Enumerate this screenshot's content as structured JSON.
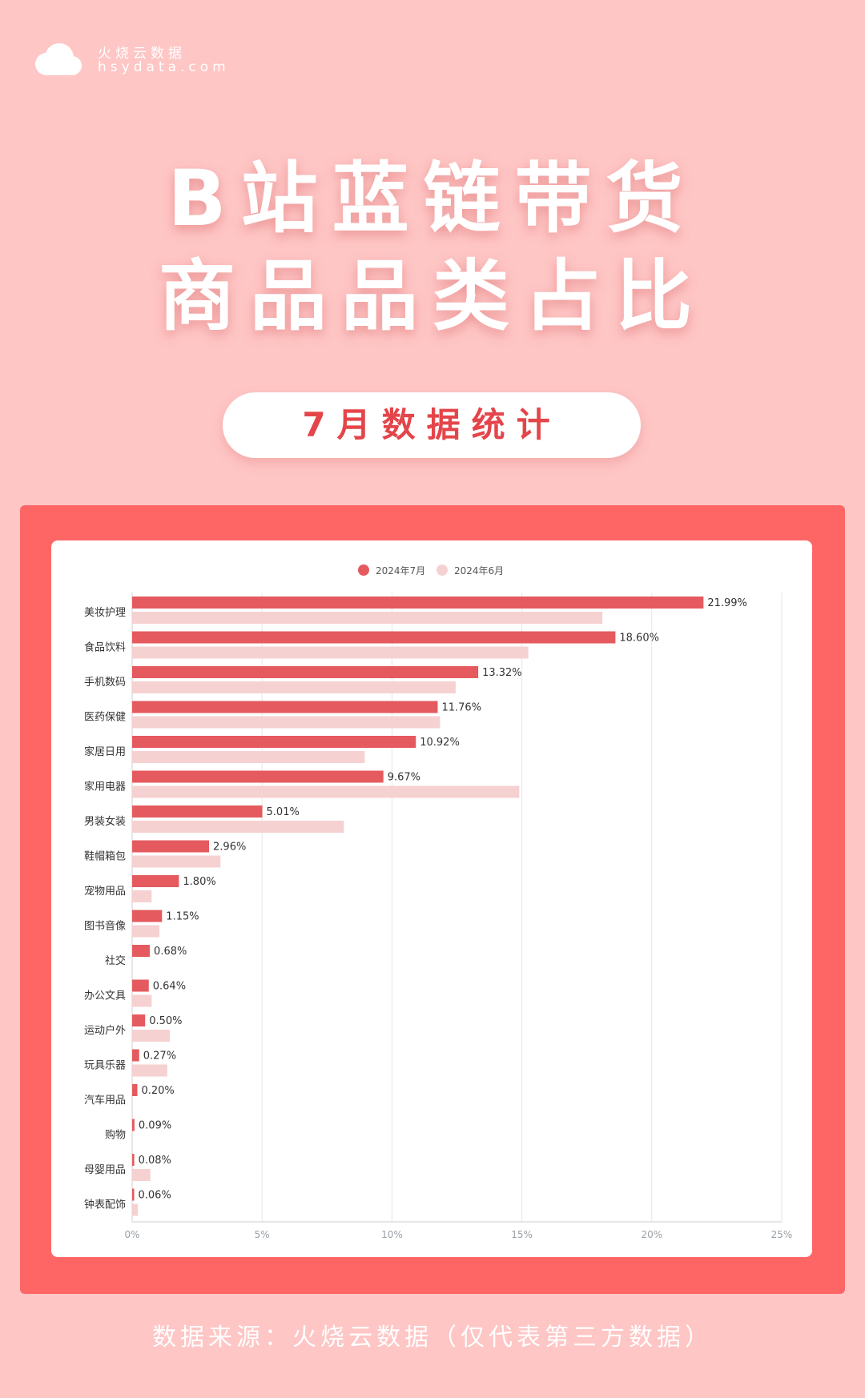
{
  "brand": {
    "name": "火烧云数据",
    "url": "hsydata.com",
    "logo_icon": "cloud-icon"
  },
  "title_line1": "B站蓝链带货",
  "title_line2": "商品品类占比",
  "subtitle_pill": "7月数据统计",
  "source": "数据来源：火烧云数据（仅代表第三方数据）",
  "colors": {
    "background": "#fec6c5",
    "frame": "#fe6666",
    "jul": "#e45a5e",
    "jun": "#f6d1d1",
    "accent": "#e4454a"
  },
  "chart_data": {
    "type": "bar",
    "orientation": "horizontal",
    "categories": [
      "美妆护理",
      "食品饮料",
      "手机数码",
      "医药保健",
      "家居日用",
      "家用电器",
      "男装女装",
      "鞋帽箱包",
      "宠物用品",
      "图书音像",
      "社交",
      "办公文具",
      "运动户外",
      "玩具乐器",
      "汽车用品",
      "购物",
      "母婴用品",
      "钟表配饰"
    ],
    "series": [
      {
        "name": "2024年7月",
        "values": [
          21.99,
          18.6,
          13.32,
          11.76,
          10.92,
          9.67,
          5.01,
          2.96,
          1.8,
          1.15,
          0.68,
          0.64,
          0.5,
          0.27,
          0.2,
          0.09,
          0.08,
          0.06
        ],
        "labels": [
          "21.99%",
          "18.60%",
          "13.32%",
          "11.76%",
          "10.92%",
          "9.67%",
          "5.01%",
          "2.96%",
          "1.80%",
          "1.15%",
          "0.68%",
          "0.64%",
          "0.50%",
          "0.27%",
          "0.20%",
          "0.09%",
          "0.08%",
          "0.06%"
        ]
      },
      {
        "name": "2024年6月",
        "values": [
          18.1,
          15.25,
          12.45,
          11.85,
          8.95,
          14.9,
          8.15,
          3.4,
          0.75,
          1.05,
          0,
          0.75,
          1.45,
          1.35,
          0,
          0,
          0.7,
          0.22
        ]
      }
    ],
    "xlim": [
      0,
      25
    ],
    "xticks": [
      "0%",
      "5%",
      "10%",
      "15%",
      "20%",
      "25%"
    ],
    "grid": true,
    "legend_position": "top"
  }
}
